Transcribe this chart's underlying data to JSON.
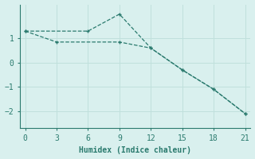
{
  "line1_x": [
    0,
    6,
    9,
    12,
    15,
    18,
    21
  ],
  "line1_y": [
    1.3,
    1.3,
    2.0,
    0.6,
    -0.3,
    -1.1,
    -2.1
  ],
  "line2_x": [
    0,
    3,
    9,
    12,
    15,
    18,
    21
  ],
  "line2_y": [
    1.3,
    0.85,
    0.85,
    0.6,
    -0.3,
    -1.1,
    -2.1
  ],
  "color": "#2a7a6e",
  "bg_color": "#d9f0ee",
  "grid_color": "#c0e0dc",
  "xlabel": "Humidex (Indice chaleur)",
  "xlim": [
    -0.5,
    21.5
  ],
  "ylim": [
    -2.7,
    2.4
  ],
  "xticks": [
    0,
    3,
    6,
    9,
    12,
    15,
    18,
    21
  ],
  "yticks": [
    -2,
    -1,
    0,
    1
  ],
  "linewidth": 0.9,
  "markersize": 3.5
}
